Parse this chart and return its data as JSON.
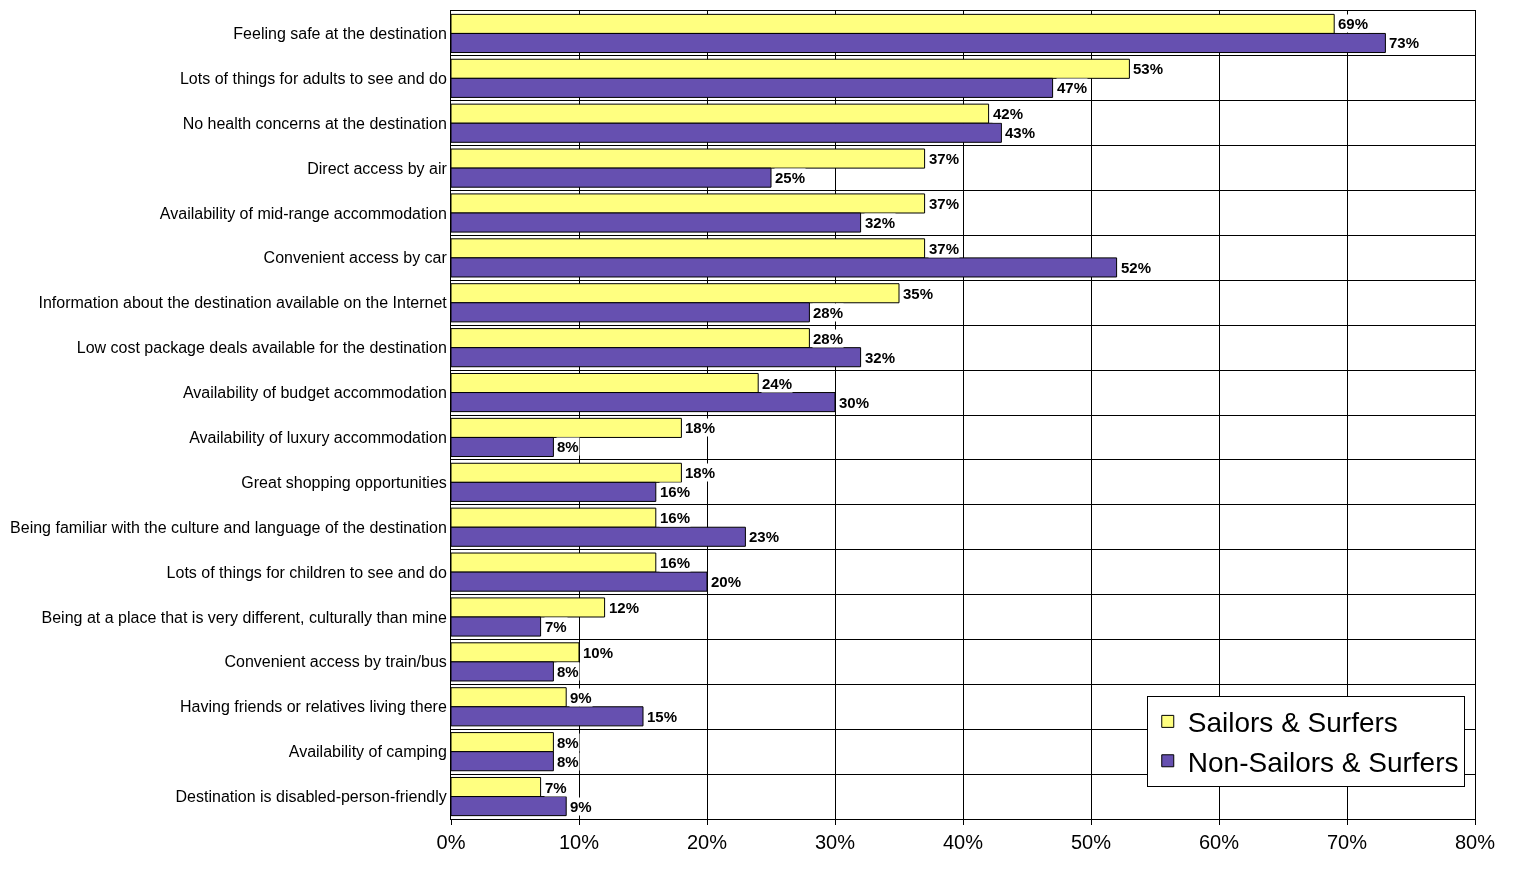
{
  "chart_data": {
    "type": "bar",
    "orientation": "horizontal",
    "categories": [
      "Feeling safe at the destination",
      "Lots of things for adults to see and do",
      "No health concerns at the destination",
      "Direct access by air",
      "Availability of mid-range accommodation",
      "Convenient access by car",
      "Information about the destination available on the Internet",
      "Low cost package deals available for the destination",
      "Availability of budget accommodation",
      "Availability of luxury accommodation",
      "Great shopping opportunities",
      "Being familiar with the culture and language of the destination",
      "Lots of things for children to see and do",
      "Being at a place that is very different, culturally than mine",
      "Convenient access by train/bus",
      "Having friends or relatives living there",
      "Availability of camping",
      "Destination is disabled-person-friendly"
    ],
    "series": [
      {
        "name": "Sailors & Surfers",
        "color": "#ffff80",
        "values": [
          69,
          53,
          42,
          37,
          37,
          37,
          35,
          28,
          24,
          18,
          18,
          16,
          16,
          12,
          10,
          9,
          8,
          7
        ],
        "value_labels": [
          "69%",
          "53%",
          "42%",
          "37%",
          "37%",
          "37%",
          "35%",
          "28%",
          "24%",
          "18%",
          "18%",
          "16%",
          "16%",
          "12%",
          "10%",
          "9%",
          "8%",
          "7%"
        ]
      },
      {
        "name": "Non-Sailors & Surfers",
        "color": "#6650b0",
        "values": [
          73,
          47,
          43,
          25,
          32,
          52,
          28,
          32,
          30,
          8,
          16,
          23,
          20,
          7,
          8,
          15,
          8,
          9
        ],
        "value_labels": [
          "73%",
          "47%",
          "43%",
          "25%",
          "32%",
          "52%",
          "28%",
          "32%",
          "30%",
          "8%",
          "16%",
          "23%",
          "20%",
          "7%",
          "8%",
          "15%",
          "8%",
          "9%"
        ]
      }
    ],
    "xlim": [
      0,
      80
    ],
    "xticks": [
      {
        "value": 0,
        "label": "0%"
      },
      {
        "value": 10,
        "label": "10%"
      },
      {
        "value": 20,
        "label": "20%"
      },
      {
        "value": 30,
        "label": "30%"
      },
      {
        "value": 40,
        "label": "40%"
      },
      {
        "value": 50,
        "label": "50%"
      },
      {
        "value": 60,
        "label": "60%"
      },
      {
        "value": 70,
        "label": "70%"
      },
      {
        "value": 80,
        "label": "80%"
      }
    ],
    "grid": true,
    "legend": "bottom right"
  }
}
